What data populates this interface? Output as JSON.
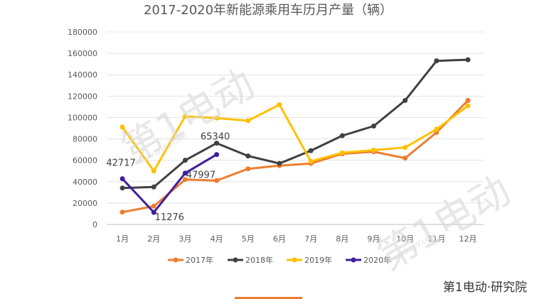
{
  "chart_data": {
    "type": "line",
    "title": "2017-2020年新能源乘用车历月产量（辆）",
    "categories": [
      "1月",
      "2月",
      "3月",
      "4月",
      "5月",
      "6月",
      "7月",
      "8月",
      "9月",
      "10月",
      "11月",
      "12月"
    ],
    "ylim": [
      0,
      180000
    ],
    "yticks": [
      0,
      20000,
      40000,
      60000,
      80000,
      100000,
      120000,
      140000,
      160000,
      180000
    ],
    "grid": true,
    "legend_position": "bottom",
    "series": [
      {
        "name": "2017年",
        "color": "#ED7D31",
        "values": [
          11500,
          17000,
          42000,
          41000,
          52000,
          55000,
          57000,
          66000,
          68000,
          62000,
          86000,
          116000
        ]
      },
      {
        "name": "2018年",
        "color": "#404040",
        "values": [
          34000,
          35000,
          60000,
          76000,
          64000,
          57000,
          69000,
          83000,
          92000,
          116000,
          153000,
          154000
        ]
      },
      {
        "name": "2019年",
        "color": "#FFC000",
        "values": [
          91000,
          50000,
          101000,
          99500,
          97000,
          112000,
          59000,
          67000,
          69500,
          72000,
          89000,
          111000
        ]
      },
      {
        "name": "2020年",
        "color": "#3F1EA0",
        "values": [
          42717,
          11276,
          47997,
          65340,
          null,
          null,
          null,
          null,
          null,
          null,
          null,
          null
        ]
      }
    ],
    "data_labels": [
      {
        "series": 3,
        "index": 0,
        "text": "42717"
      },
      {
        "series": 3,
        "index": 1,
        "text": "11276"
      },
      {
        "series": 3,
        "index": 2,
        "text": "47997"
      },
      {
        "series": 3,
        "index": 3,
        "text": "65340"
      }
    ]
  },
  "watermark": {
    "brand_text": "第1电动",
    "domain_text": "www.D1EV.com",
    "footer_text": "第1电动·研究院"
  }
}
